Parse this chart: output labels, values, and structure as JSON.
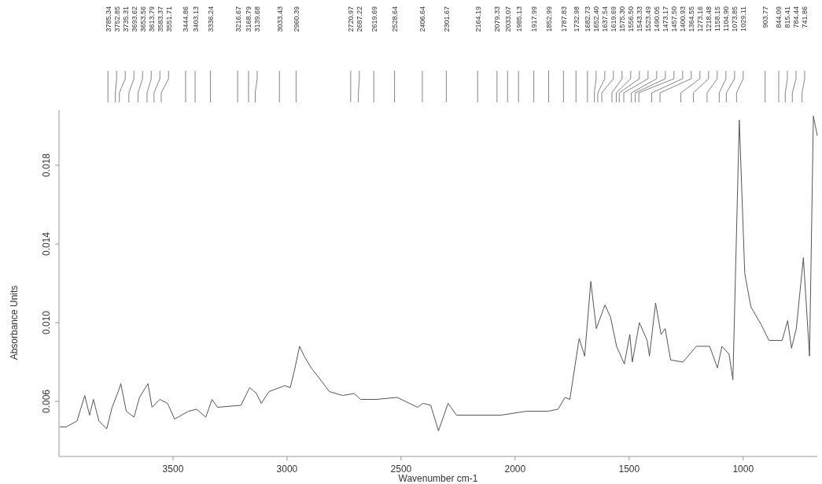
{
  "chart_data": {
    "type": "line",
    "xlabel": "Wavenumber cm-1",
    "ylabel": "Absorbance Units",
    "xlim": [
      4000,
      675
    ],
    "ylim": [
      0.0032,
      0.0208
    ],
    "xticks": [
      3500,
      3000,
      2500,
      2000,
      1500,
      1000
    ],
    "yticks": [
      0.006,
      {
        "value": 0.01,
        "label": "0.010"
      },
      0.014,
      0.018
    ],
    "grid": false,
    "series": [
      {
        "color": "#555555",
        "x": [
          3997,
          3969,
          3921,
          3887,
          3866,
          3849,
          3825,
          3791,
          3767,
          3740,
          3729,
          3705,
          3671,
          3647,
          3610,
          3592,
          3558,
          3524,
          3493,
          3432,
          3397,
          3356,
          3329,
          3305,
          3202,
          3164,
          3134,
          3113,
          3079,
          3010,
          2986,
          2969,
          2945,
          2925,
          2894,
          2860,
          2815,
          2757,
          2705,
          2678,
          2610,
          2517,
          2428,
          2404,
          2370,
          2336,
          2294,
          2257,
          2175,
          2062,
          1949,
          1856,
          1812,
          1781,
          1760,
          1719,
          1695,
          1668,
          1644,
          1606,
          1582,
          1555,
          1521,
          1497,
          1486,
          1455,
          1421,
          1411,
          1384,
          1360,
          1342,
          1318,
          1264,
          1205,
          1147,
          1113,
          1093,
          1062,
          1045,
          1017,
          993,
          966,
          921,
          887,
          829,
          805,
          788,
          767,
          736,
          709,
          692,
          675
        ],
        "values": [
          0.0047,
          0.0047,
          0.005,
          0.0063,
          0.0053,
          0.0061,
          0.005,
          0.0046,
          0.0057,
          0.0065,
          0.0069,
          0.0055,
          0.0052,
          0.0062,
          0.0069,
          0.0057,
          0.0061,
          0.0059,
          0.0051,
          0.0055,
          0.0056,
          0.0052,
          0.0061,
          0.0057,
          0.0058,
          0.0067,
          0.0064,
          0.0059,
          0.0065,
          0.0068,
          0.0067,
          0.0075,
          0.0088,
          0.0083,
          0.0077,
          0.0072,
          0.0065,
          0.0063,
          0.0064,
          0.0061,
          0.0061,
          0.0062,
          0.0057,
          0.0059,
          0.0058,
          0.0045,
          0.0059,
          0.0053,
          0.0053,
          0.0053,
          0.0055,
          0.0055,
          0.0056,
          0.0062,
          0.0061,
          0.0092,
          0.0083,
          0.0121,
          0.0097,
          0.0109,
          0.0103,
          0.0088,
          0.0079,
          0.0094,
          0.008,
          0.01,
          0.0091,
          0.0083,
          0.011,
          0.0094,
          0.0097,
          0.0081,
          0.008,
          0.0088,
          0.0088,
          0.0077,
          0.0088,
          0.0084,
          0.0071,
          0.0203,
          0.0125,
          0.0108,
          0.0099,
          0.0091,
          0.0091,
          0.0101,
          0.0087,
          0.0097,
          0.0133,
          0.0083,
          0.0205,
          0.0195
        ]
      }
    ],
    "annotations": [
      "3785.34",
      "3752.85",
      "3735.31",
      "3693.62",
      "3653.56",
      "3613.79",
      "3583.37",
      "3551.71",
      "3444.86",
      "3403.13",
      "3336.24",
      "3216.67",
      "3168.79",
      "3139.68",
      "3033.43",
      "2960.39",
      "2720.97",
      "2687.22",
      "2619.69",
      "2528.64",
      "2406.64",
      "2301.67",
      "2164.19",
      "2079.33",
      "2033.07",
      "1985.13",
      "1917.99",
      "1852.99",
      "1787.83",
      "1732.98",
      "1682.73",
      "1652.40",
      "1637.54",
      "1619.69",
      "1575.30",
      "1556.50",
      "1543.33",
      "1523.49",
      "1490.05",
      "1473.17",
      "1457.50",
      "1400.93",
      "1364.55",
      "1273.16",
      "1218.48",
      "1158.15",
      "1104.90",
      "1073.85",
      "1029.11",
      "903.77",
      "844.09",
      "815.41",
      "784.44",
      "741.86"
    ]
  }
}
